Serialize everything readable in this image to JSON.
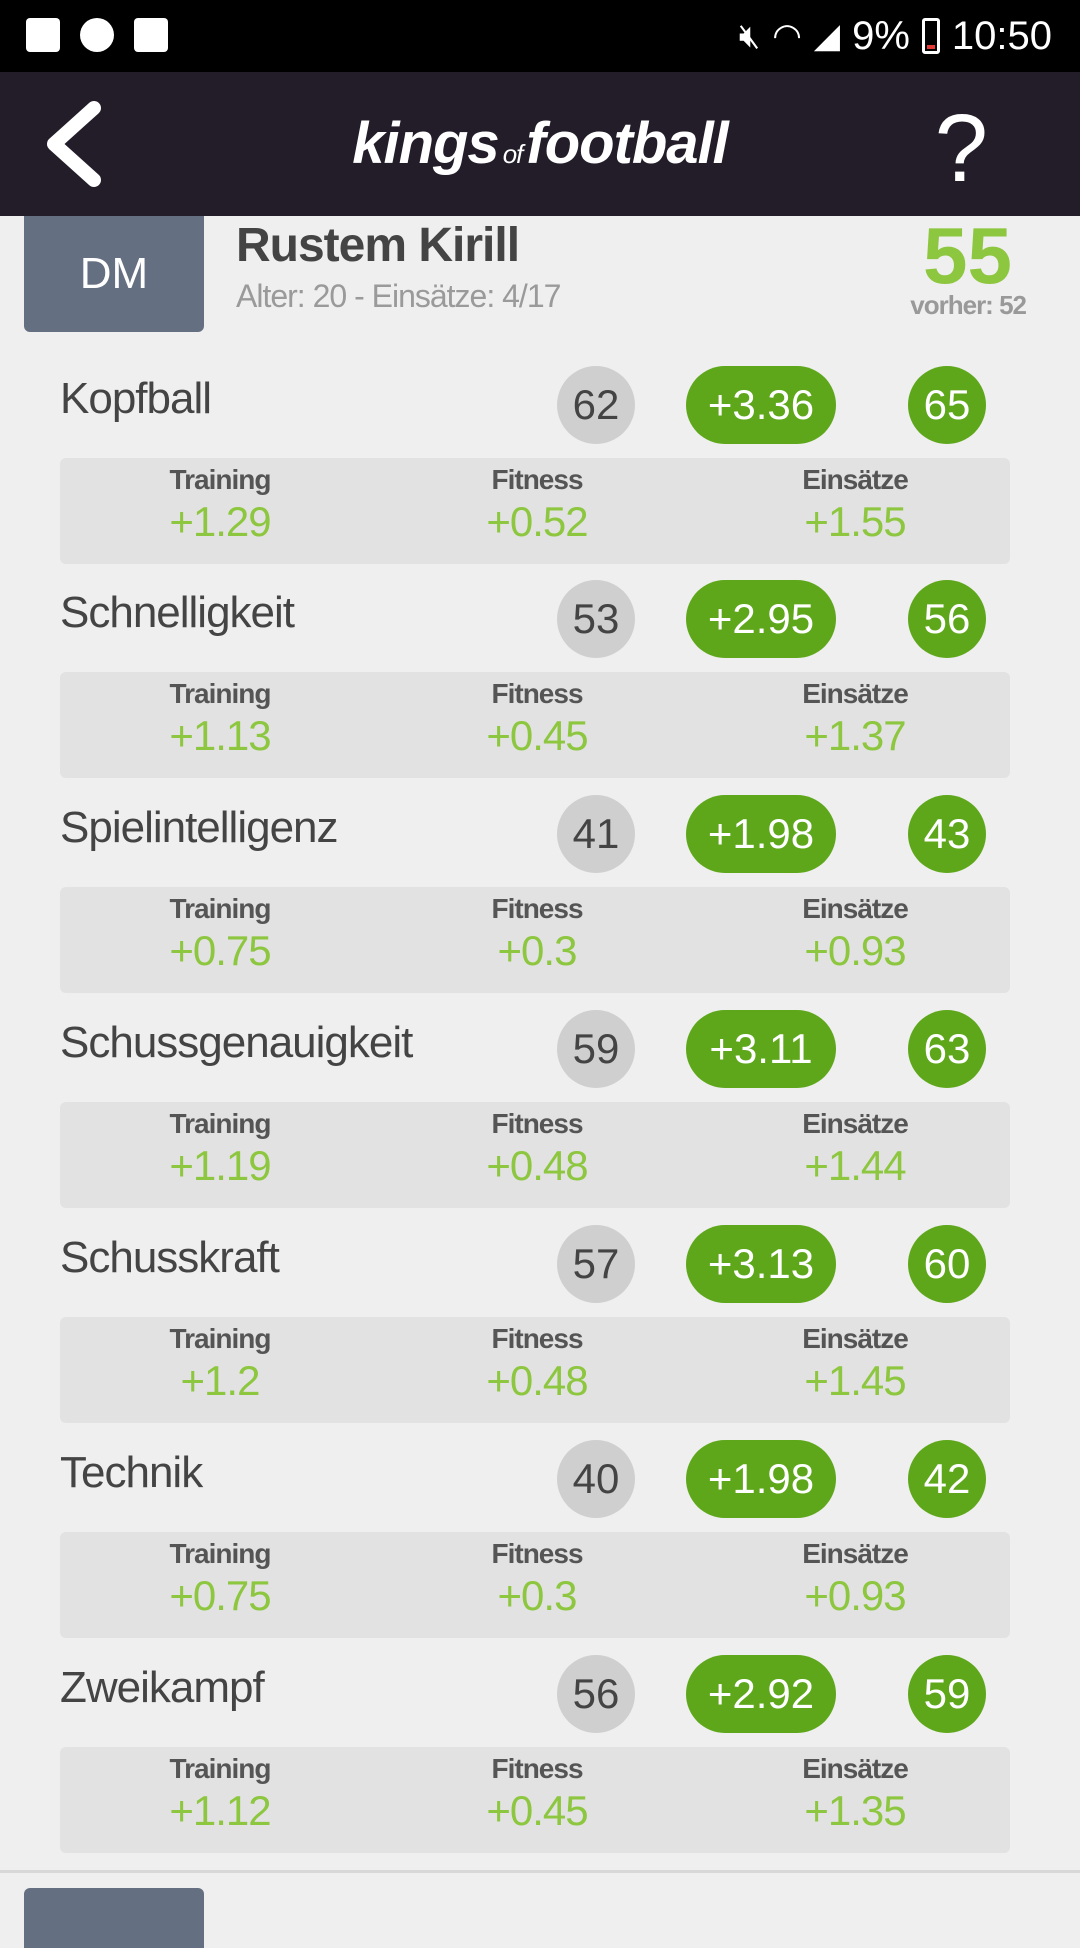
{
  "status_bar": {
    "battery": "9%",
    "time": "10:50",
    "icons": [
      "image-icon",
      "game-icon",
      "store-icon",
      "mute-icon",
      "wifi-icon",
      "signal-icon",
      "battery-icon"
    ]
  },
  "app_bar": {
    "logo_part1": "kings",
    "logo_of": "of",
    "logo_part2": "football",
    "help": "?"
  },
  "player": {
    "position": "DM",
    "name": "Rustem Kirill",
    "info": "Alter: 20 - Einsätze: 4/17",
    "rating": "55",
    "previous": "vorher: 52"
  },
  "labels": {
    "training": "Training",
    "fitness": "Fitness",
    "appearances": "Einsätze"
  },
  "attributes": [
    {
      "name": "Kopfball",
      "old": "62",
      "delta": "+3.36",
      "new": "65",
      "training": "+1.29",
      "fitness": "+0.52",
      "appearances": "+1.55"
    },
    {
      "name": "Schnelligkeit",
      "old": "53",
      "delta": "+2.95",
      "new": "56",
      "training": "+1.13",
      "fitness": "+0.45",
      "appearances": "+1.37"
    },
    {
      "name": "Spielintelligenz",
      "old": "41",
      "delta": "+1.98",
      "new": "43",
      "training": "+0.75",
      "fitness": "+0.3",
      "appearances": "+0.93"
    },
    {
      "name": "Schussgenauigkeit",
      "old": "59",
      "delta": "+3.11",
      "new": "63",
      "training": "+1.19",
      "fitness": "+0.48",
      "appearances": "+1.44"
    },
    {
      "name": "Schusskraft",
      "old": "57",
      "delta": "+3.13",
      "new": "60",
      "training": "+1.2",
      "fitness": "+0.48",
      "appearances": "+1.45"
    },
    {
      "name": "Technik",
      "old": "40",
      "delta": "+1.98",
      "new": "42",
      "training": "+0.75",
      "fitness": "+0.3",
      "appearances": "+0.93"
    },
    {
      "name": "Zweikampf",
      "old": "56",
      "delta": "+2.92",
      "new": "59",
      "training": "+1.12",
      "fitness": "+0.45",
      "appearances": "+1.35"
    }
  ],
  "colors": {
    "accent_green": "#5ea71b",
    "value_green": "#8dc63f",
    "app_bar": "#231d2a",
    "position_badge": "#647082"
  }
}
